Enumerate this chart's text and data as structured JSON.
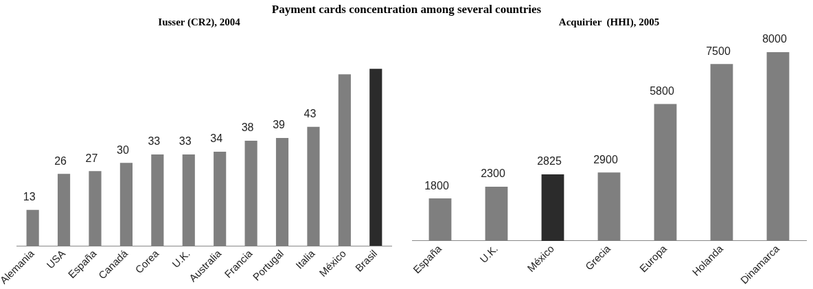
{
  "chart_data": [
    {
      "type": "bar",
      "title": "Payment cards concentration among several countries",
      "subtitle": "Iusser (CR2), 2004",
      "categories": [
        "Alemania",
        "USA",
        "España",
        "Canadá",
        "Corea",
        "U.K.",
        "Australia",
        "Francia",
        "Portugal",
        "Italia",
        "México",
        "Brasil"
      ],
      "values": [
        13,
        26,
        27,
        30,
        33,
        33,
        34,
        38,
        39,
        43,
        62,
        64
      ],
      "value_labels": [
        "13",
        "26",
        "27",
        "30",
        "33",
        "33",
        "34",
        "38",
        "39",
        "43",
        null,
        null
      ],
      "colors": [
        "#7f7f7f",
        "#7f7f7f",
        "#7f7f7f",
        "#7f7f7f",
        "#7f7f7f",
        "#7f7f7f",
        "#7f7f7f",
        "#7f7f7f",
        "#7f7f7f",
        "#7f7f7f",
        "#7f7f7f",
        "#2b2b2b"
      ],
      "grid": false,
      "legend": false,
      "tick_labels": "x"
    },
    {
      "type": "bar",
      "subtitle": "Acquirier  (HHI), 2005",
      "categories": [
        "España",
        "U.K.",
        "México",
        "Grecia",
        "Europa",
        "Holanda",
        "Dinamarca"
      ],
      "values": [
        1800,
        2300,
        2825,
        2900,
        5800,
        7500,
        8000
      ],
      "data_labels": true,
      "colors": [
        "#7f7f7f",
        "#7f7f7f",
        "#2b2b2b",
        "#7f7f7f",
        "#7f7f7f",
        "#7f7f7f",
        "#7f7f7f"
      ],
      "grid": false,
      "legend": false,
      "tick_labels": "x"
    }
  ]
}
